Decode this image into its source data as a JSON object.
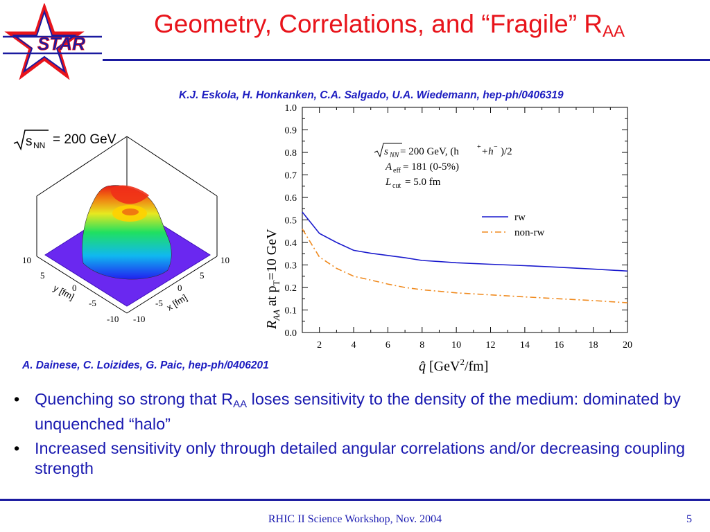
{
  "slide": {
    "logo_text": "STAR",
    "title_main": "Geometry, Correlations, and “Fragile” R",
    "title_sub": "AA",
    "ref_top": "K.J. Eskola, H. Honkanken, C.A. Salgado, U.A. Wiedemann, hep-ph/0406319",
    "ref_bottom": "A. Dainese, C. Loizides, G. Paic, hep-ph/0406201",
    "bullet1_a": "Quenching so strong that R",
    "bullet1_sub": "AA",
    "bullet1_b": " loses sensitivity to the density of the medium: dominated by unquenched “halo”",
    "bullet2": "Increased sensitivity only through detailed angular correlations and/or decreasing coupling  strength",
    "bullet_symbol": "•",
    "footer": "RHIC II Science Workshop, Nov. 2004",
    "page_number": "5"
  },
  "surface_plot": {
    "energy_label": "= 200 GeV",
    "sqrt_sub": "NN",
    "sqrt_s": "s",
    "x_label": "x [fm]",
    "y_label": "y [fm]",
    "x_ticks": [
      "10",
      "5",
      "0",
      "-5",
      "-10"
    ],
    "y_ticks": [
      "10",
      "5",
      "0",
      "-5",
      "-10"
    ],
    "base_color": "#6a28f0"
  },
  "chart_data": {
    "type": "line",
    "xlabel": "q̂ [GeV²/fm]",
    "ylabel": "R_AA at p_T=10 GeV",
    "xlim": [
      1,
      20
    ],
    "ylim": [
      0,
      1.0
    ],
    "x_ticks": [
      2,
      4,
      6,
      8,
      10,
      12,
      14,
      16,
      18,
      20
    ],
    "y_ticks": [
      0.0,
      0.1,
      0.2,
      0.3,
      0.4,
      0.5,
      0.6,
      0.7,
      0.8,
      0.9,
      1.0
    ],
    "y_tick_labels": [
      "0.0",
      "0.1",
      "0.2",
      "0.3",
      "0.4",
      "0.5",
      "0.6",
      "0.7",
      "0.8",
      "0.9",
      "1.0"
    ],
    "legend_position": "right-middle",
    "annotation": {
      "line1_sub": "NN",
      "line1_rest": " = 200 GeV, (h",
      "line1_plus": "+",
      "line1_h": "+h",
      "line1_minus": "−",
      "line1_end": ")/2",
      "line2_sym": "A",
      "line2_sub": "eff",
      "line2_rest": " = 181 (0-5%)",
      "line3_sym": "L",
      "line3_sub": "cut",
      "line3_rest": " = 5.0 fm"
    },
    "series": [
      {
        "name": "rw",
        "color": "#1a1acd",
        "style": "solid",
        "x": [
          1,
          2,
          3,
          4,
          5,
          6,
          7,
          8,
          9,
          10,
          12,
          14,
          16,
          18,
          20
        ],
        "y": [
          0.535,
          0.44,
          0.4,
          0.365,
          0.352,
          0.342,
          0.332,
          0.32,
          0.315,
          0.31,
          0.303,
          0.297,
          0.29,
          0.282,
          0.273
        ]
      },
      {
        "name": "non-rw",
        "color": "#f08a1e",
        "style": "dashdot",
        "x": [
          1,
          2,
          3,
          4,
          5,
          6,
          7,
          8,
          9,
          10,
          12,
          14,
          16,
          18,
          20
        ],
        "y": [
          0.46,
          0.335,
          0.285,
          0.25,
          0.233,
          0.215,
          0.2,
          0.19,
          0.183,
          0.176,
          0.167,
          0.158,
          0.15,
          0.142,
          0.132
        ]
      }
    ]
  }
}
